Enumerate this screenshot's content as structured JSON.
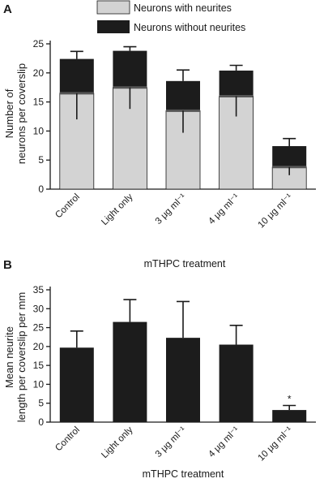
{
  "chart_data": [
    {
      "panel": "A",
      "type": "bar",
      "stacked": true,
      "categories": [
        "Control",
        "Light only",
        "3 μg ml⁻¹",
        "4 μg ml⁻¹",
        "10 μg ml⁻¹"
      ],
      "series": [
        {
          "name": "Neurons with neurites",
          "color": "#d3d3d3",
          "values": [
            16.5,
            17.5,
            13.5,
            16.0,
            3.8
          ],
          "error_low": [
            12.0,
            13.8,
            9.7,
            12.5,
            2.4
          ]
        },
        {
          "name": "Neurons without neurites",
          "color": "#1c1c1c",
          "values": [
            5.9,
            6.3,
            5.1,
            4.4,
            3.6
          ],
          "error_high": [
            23.7,
            24.5,
            20.5,
            21.3,
            8.7
          ]
        }
      ],
      "xlabel": "",
      "ylabel": "Number of neurons per coverslip",
      "yticks": [
        0,
        5,
        10,
        15,
        20,
        25
      ],
      "ylim": [
        0,
        25
      ],
      "legend": "top-center"
    },
    {
      "panel": "B",
      "type": "bar",
      "title": "mTHPC treatment",
      "categories": [
        "Control",
        "Light only",
        "3 μg ml⁻¹",
        "4 μg ml⁻¹",
        "10 μg ml⁻¹"
      ],
      "values": [
        19.7,
        26.5,
        22.3,
        20.5,
        3.2
      ],
      "error_high": [
        24.1,
        32.4,
        31.9,
        25.6,
        4.4
      ],
      "color": "#1c1c1c",
      "annotations": [
        {
          "category": "10 μg ml⁻¹",
          "text": "*"
        }
      ],
      "xlabel": "mTHPC treatment",
      "ylabel": "Mean neurite length per coverslip per mm",
      "yticks": [
        0,
        5,
        10,
        15,
        20,
        25,
        30,
        35
      ],
      "ylim": [
        0,
        35
      ]
    }
  ],
  "labels": {
    "panel_a": "A",
    "panel_b": "B",
    "legend_with": "Neurons with neurites",
    "legend_without": "Neurons without neurites",
    "ylabel_a_line1": "Number of",
    "ylabel_a_line2": "neurons per coverslip",
    "ylabel_b_line1": "Mean neurite",
    "ylabel_b_line2": "length per coverslip per mm",
    "title_b": "mTHPC treatment",
    "xlabel_b": "mTHPC treatment"
  }
}
